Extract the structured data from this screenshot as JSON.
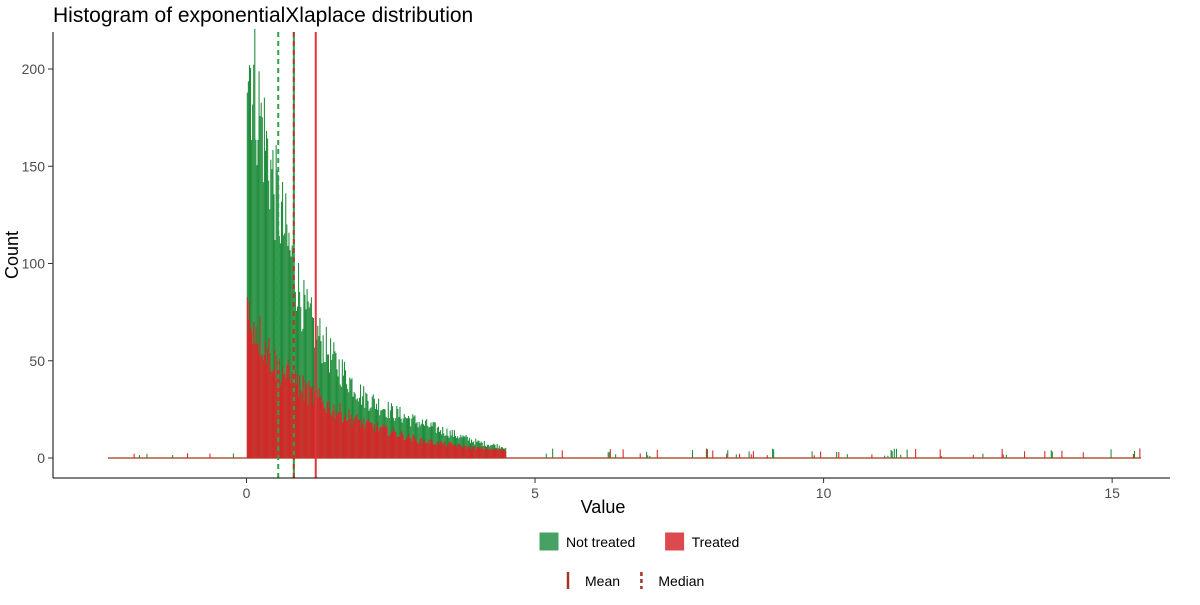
{
  "chart_data": {
    "type": "histogram",
    "title": "Histogram of exponentialXlaplace distribution",
    "xlabel": "Value",
    "ylabel": "Count",
    "xlim": [
      -3,
      15.5
    ],
    "ylim": [
      0,
      220
    ],
    "x_ticks": [
      0,
      5,
      10,
      15
    ],
    "y_ticks": [
      0,
      50,
      100,
      150,
      200
    ],
    "grid": false,
    "bin_width": 0.0185,
    "series": [
      {
        "name": "Not treated",
        "color": "#1f8c3b",
        "shape": "exponential",
        "peak_count": 210,
        "onset_x": 0.0,
        "decay_rate": 1.6,
        "counts_at": [
          {
            "x": 0.0,
            "count": 210
          },
          {
            "x": 0.5,
            "count": 135
          },
          {
            "x": 1.0,
            "count": 75
          },
          {
            "x": 1.5,
            "count": 50
          },
          {
            "x": 2.0,
            "count": 32
          },
          {
            "x": 2.5,
            "count": 24
          },
          {
            "x": 3.0,
            "count": 18
          },
          {
            "x": 4.0,
            "count": 8
          },
          {
            "x": 5.0,
            "count": 3
          },
          {
            "x": 7.0,
            "count": 1
          }
        ]
      },
      {
        "name": "Treated",
        "color": "#d62728",
        "shape": "exponential",
        "peak_count": 75,
        "onset_x": 0.0,
        "decay_rate": 1.1,
        "counts_at": [
          {
            "x": 0.0,
            "count": 75
          },
          {
            "x": 0.5,
            "count": 48
          },
          {
            "x": 1.0,
            "count": 35
          },
          {
            "x": 1.5,
            "count": 25
          },
          {
            "x": 2.0,
            "count": 18
          },
          {
            "x": 3.0,
            "count": 9
          },
          {
            "x": 4.0,
            "count": 5
          },
          {
            "x": 5.0,
            "count": 3
          },
          {
            "x": 7.0,
            "count": 1
          }
        ]
      }
    ],
    "reference_lines": [
      {
        "series": "Not treated",
        "stat": "Mean",
        "x": 0.82,
        "style": "solid",
        "color": "#2aa34a"
      },
      {
        "series": "Not treated",
        "stat": "Median",
        "x": 0.55,
        "style": "dashed",
        "color": "#2aa34a"
      },
      {
        "series": "Treated",
        "stat": "Mean",
        "x": 1.2,
        "style": "solid",
        "color": "#e0353b"
      },
      {
        "series": "Treated",
        "stat": "Median",
        "x": 0.82,
        "style": "dashed",
        "color": "#b23a2a"
      }
    ],
    "legend": {
      "placement": "bottom",
      "fill_entries": [
        {
          "label": "Not treated",
          "color": "#45a262"
        },
        {
          "label": "Treated",
          "color": "#db4a4e"
        }
      ],
      "line_entries": [
        {
          "label": "Mean",
          "style": "solid",
          "color": "#a0362a"
        },
        {
          "label": "Median",
          "style": "dashed",
          "color": "#a0362a"
        }
      ]
    }
  }
}
